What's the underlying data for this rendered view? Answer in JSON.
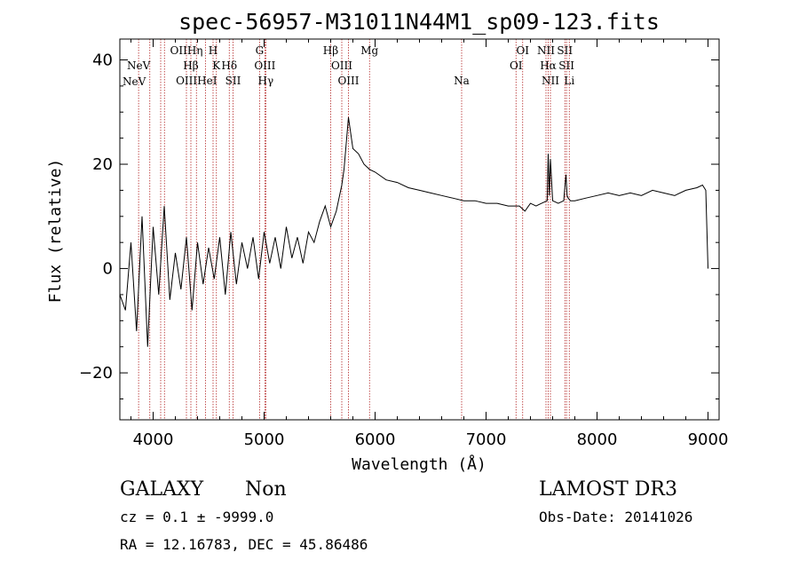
{
  "chart_data": {
    "type": "line",
    "title": "spec-56957-M31011N44M1_sp09-123.fits",
    "xlabel": "Wavelength (Å)",
    "ylabel": "Flux (relative)",
    "xlim": [
      3700,
      9100
    ],
    "ylim": [
      -29,
      44
    ],
    "x_ticks": [
      4000,
      5000,
      6000,
      7000,
      8000,
      9000
    ],
    "y_ticks": [
      -20,
      0,
      20,
      40
    ],
    "grid": false,
    "line_color": "#000000",
    "marker_color": "#b22222",
    "series": [
      {
        "x": [
          3700,
          3750,
          3800,
          3850,
          3900,
          3950,
          4000,
          4050,
          4100,
          4150,
          4200,
          4250,
          4300,
          4350,
          4400,
          4450,
          4500,
          4550,
          4600,
          4650,
          4700,
          4750,
          4800,
          4850,
          4900,
          4950,
          5000,
          5050,
          5100,
          5150,
          5200,
          5250,
          5300,
          5350,
          5400,
          5450,
          5500,
          5550,
          5600,
          5650,
          5700,
          5720,
          5740,
          5760,
          5780,
          5800,
          5850,
          5900,
          5950,
          6000,
          6100,
          6200,
          6300,
          6400,
          6500,
          6600,
          6700,
          6800,
          6900,
          7000,
          7100,
          7200,
          7300,
          7350,
          7400,
          7450,
          7500,
          7550,
          7560,
          7570,
          7580,
          7600,
          7650,
          7700,
          7720,
          7730,
          7740,
          7760,
          7800,
          7900,
          8000,
          8100,
          8200,
          8300,
          8400,
          8500,
          8600,
          8700,
          8800,
          8900,
          8950,
          8980,
          9000
        ],
        "y": [
          -5,
          -8,
          5,
          -12,
          10,
          -15,
          8,
          -5,
          12,
          -6,
          3,
          -4,
          6,
          -8,
          5,
          -3,
          4,
          -2,
          6,
          -5,
          7,
          -3,
          5,
          0,
          6,
          -2,
          7,
          1,
          6,
          0,
          8,
          2,
          6,
          1,
          7,
          5,
          9,
          12,
          8,
          11,
          16,
          19,
          24,
          29,
          26,
          23,
          22,
          20,
          19,
          18.5,
          17,
          16.5,
          15.5,
          15,
          14.5,
          14,
          13.5,
          13,
          13,
          12.5,
          12.5,
          12,
          12,
          11,
          12.5,
          12,
          12.5,
          13,
          22,
          14,
          21,
          13,
          12.5,
          13,
          18,
          14,
          13.5,
          13,
          13,
          13.5,
          14,
          14.5,
          14,
          14.5,
          14,
          15,
          14.5,
          14,
          15,
          15.5,
          16,
          15,
          0
        ]
      }
    ],
    "line_markers": [
      {
        "x": 3869,
        "label": "NeV",
        "row": 1
      },
      {
        "x": 3970,
        "label": "",
        "row": 1
      },
      {
        "x": 4068,
        "label": "",
        "row": 2
      },
      {
        "x": 4102,
        "label": "",
        "row": 2
      },
      {
        "x": 4300,
        "label": "OIIHη",
        "row": 0
      },
      {
        "x": 4340,
        "label": "Hβ",
        "row": 1
      },
      {
        "x": 4390,
        "label": "OIIIHeI",
        "row": 2
      },
      {
        "x": 4471,
        "label": "",
        "row": 2
      },
      {
        "x": 4540,
        "label": "H",
        "row": 0
      },
      {
        "x": 4570,
        "label": "K",
        "row": 1
      },
      {
        "x": 4686,
        "label": "Hδ",
        "row": 1
      },
      {
        "x": 4720,
        "label": "SII",
        "row": 2
      },
      {
        "x": 4959,
        "label": "G",
        "row": 0
      },
      {
        "x": 5007,
        "label": "OIII",
        "row": 1
      },
      {
        "x": 5015,
        "label": "Hγ",
        "row": 2
      },
      {
        "x": 5600,
        "label": "Hβ",
        "row": 0
      },
      {
        "x": 5700,
        "label": "OIII",
        "row": 1
      },
      {
        "x": 5760,
        "label": "OIII",
        "row": 2
      },
      {
        "x": 5950,
        "label": "Mg",
        "row": 0
      },
      {
        "x": 6780,
        "label": "Na",
        "row": 2
      },
      {
        "x": 7270,
        "label": "OI",
        "row": 1
      },
      {
        "x": 7330,
        "label": "OI",
        "row": 0
      },
      {
        "x": 7540,
        "label": "NII",
        "row": 0
      },
      {
        "x": 7560,
        "label": "Hα",
        "row": 1
      },
      {
        "x": 7580,
        "label": "NII",
        "row": 2
      },
      {
        "x": 7710,
        "label": "SII",
        "row": 0
      },
      {
        "x": 7725,
        "label": "SII",
        "row": 1
      },
      {
        "x": 7750,
        "label": "Li",
        "row": 2
      }
    ]
  },
  "footer": {
    "class": "GALAXY",
    "subclass": "Non",
    "survey": "LAMOST DR3",
    "cz": "cz = 0.1 ± -9999.0",
    "obs_date": "Obs-Date: 20141026",
    "coords": "RA =  12.16783, DEC =  45.86486"
  },
  "left_labels": {
    "neV": "NeV"
  }
}
